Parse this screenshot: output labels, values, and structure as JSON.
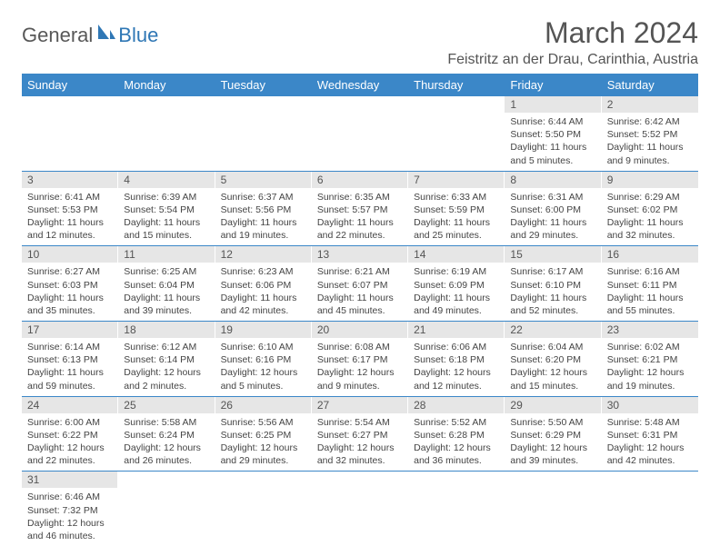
{
  "logo": {
    "general": "General",
    "blue": "Blue"
  },
  "title": "March 2024",
  "location": "Feistritz an der Drau, Carinthia, Austria",
  "columns": [
    "Sunday",
    "Monday",
    "Tuesday",
    "Wednesday",
    "Thursday",
    "Friday",
    "Saturday"
  ],
  "colors": {
    "header_bg": "#3b87c8",
    "header_fg": "#ffffff",
    "daybar_bg": "#e6e6e6",
    "rule": "#3b87c8",
    "logo_blue": "#2f77b5",
    "logo_gray": "#585858"
  },
  "weeks": [
    [
      null,
      null,
      null,
      null,
      null,
      {
        "n": "1",
        "sr": "Sunrise: 6:44 AM",
        "ss": "Sunset: 5:50 PM",
        "dl": "Daylight: 11 hours and 5 minutes."
      },
      {
        "n": "2",
        "sr": "Sunrise: 6:42 AM",
        "ss": "Sunset: 5:52 PM",
        "dl": "Daylight: 11 hours and 9 minutes."
      }
    ],
    [
      {
        "n": "3",
        "sr": "Sunrise: 6:41 AM",
        "ss": "Sunset: 5:53 PM",
        "dl": "Daylight: 11 hours and 12 minutes."
      },
      {
        "n": "4",
        "sr": "Sunrise: 6:39 AM",
        "ss": "Sunset: 5:54 PM",
        "dl": "Daylight: 11 hours and 15 minutes."
      },
      {
        "n": "5",
        "sr": "Sunrise: 6:37 AM",
        "ss": "Sunset: 5:56 PM",
        "dl": "Daylight: 11 hours and 19 minutes."
      },
      {
        "n": "6",
        "sr": "Sunrise: 6:35 AM",
        "ss": "Sunset: 5:57 PM",
        "dl": "Daylight: 11 hours and 22 minutes."
      },
      {
        "n": "7",
        "sr": "Sunrise: 6:33 AM",
        "ss": "Sunset: 5:59 PM",
        "dl": "Daylight: 11 hours and 25 minutes."
      },
      {
        "n": "8",
        "sr": "Sunrise: 6:31 AM",
        "ss": "Sunset: 6:00 PM",
        "dl": "Daylight: 11 hours and 29 minutes."
      },
      {
        "n": "9",
        "sr": "Sunrise: 6:29 AM",
        "ss": "Sunset: 6:02 PM",
        "dl": "Daylight: 11 hours and 32 minutes."
      }
    ],
    [
      {
        "n": "10",
        "sr": "Sunrise: 6:27 AM",
        "ss": "Sunset: 6:03 PM",
        "dl": "Daylight: 11 hours and 35 minutes."
      },
      {
        "n": "11",
        "sr": "Sunrise: 6:25 AM",
        "ss": "Sunset: 6:04 PM",
        "dl": "Daylight: 11 hours and 39 minutes."
      },
      {
        "n": "12",
        "sr": "Sunrise: 6:23 AM",
        "ss": "Sunset: 6:06 PM",
        "dl": "Daylight: 11 hours and 42 minutes."
      },
      {
        "n": "13",
        "sr": "Sunrise: 6:21 AM",
        "ss": "Sunset: 6:07 PM",
        "dl": "Daylight: 11 hours and 45 minutes."
      },
      {
        "n": "14",
        "sr": "Sunrise: 6:19 AM",
        "ss": "Sunset: 6:09 PM",
        "dl": "Daylight: 11 hours and 49 minutes."
      },
      {
        "n": "15",
        "sr": "Sunrise: 6:17 AM",
        "ss": "Sunset: 6:10 PM",
        "dl": "Daylight: 11 hours and 52 minutes."
      },
      {
        "n": "16",
        "sr": "Sunrise: 6:16 AM",
        "ss": "Sunset: 6:11 PM",
        "dl": "Daylight: 11 hours and 55 minutes."
      }
    ],
    [
      {
        "n": "17",
        "sr": "Sunrise: 6:14 AM",
        "ss": "Sunset: 6:13 PM",
        "dl": "Daylight: 11 hours and 59 minutes."
      },
      {
        "n": "18",
        "sr": "Sunrise: 6:12 AM",
        "ss": "Sunset: 6:14 PM",
        "dl": "Daylight: 12 hours and 2 minutes."
      },
      {
        "n": "19",
        "sr": "Sunrise: 6:10 AM",
        "ss": "Sunset: 6:16 PM",
        "dl": "Daylight: 12 hours and 5 minutes."
      },
      {
        "n": "20",
        "sr": "Sunrise: 6:08 AM",
        "ss": "Sunset: 6:17 PM",
        "dl": "Daylight: 12 hours and 9 minutes."
      },
      {
        "n": "21",
        "sr": "Sunrise: 6:06 AM",
        "ss": "Sunset: 6:18 PM",
        "dl": "Daylight: 12 hours and 12 minutes."
      },
      {
        "n": "22",
        "sr": "Sunrise: 6:04 AM",
        "ss": "Sunset: 6:20 PM",
        "dl": "Daylight: 12 hours and 15 minutes."
      },
      {
        "n": "23",
        "sr": "Sunrise: 6:02 AM",
        "ss": "Sunset: 6:21 PM",
        "dl": "Daylight: 12 hours and 19 minutes."
      }
    ],
    [
      {
        "n": "24",
        "sr": "Sunrise: 6:00 AM",
        "ss": "Sunset: 6:22 PM",
        "dl": "Daylight: 12 hours and 22 minutes."
      },
      {
        "n": "25",
        "sr": "Sunrise: 5:58 AM",
        "ss": "Sunset: 6:24 PM",
        "dl": "Daylight: 12 hours and 26 minutes."
      },
      {
        "n": "26",
        "sr": "Sunrise: 5:56 AM",
        "ss": "Sunset: 6:25 PM",
        "dl": "Daylight: 12 hours and 29 minutes."
      },
      {
        "n": "27",
        "sr": "Sunrise: 5:54 AM",
        "ss": "Sunset: 6:27 PM",
        "dl": "Daylight: 12 hours and 32 minutes."
      },
      {
        "n": "28",
        "sr": "Sunrise: 5:52 AM",
        "ss": "Sunset: 6:28 PM",
        "dl": "Daylight: 12 hours and 36 minutes."
      },
      {
        "n": "29",
        "sr": "Sunrise: 5:50 AM",
        "ss": "Sunset: 6:29 PM",
        "dl": "Daylight: 12 hours and 39 minutes."
      },
      {
        "n": "30",
        "sr": "Sunrise: 5:48 AM",
        "ss": "Sunset: 6:31 PM",
        "dl": "Daylight: 12 hours and 42 minutes."
      }
    ],
    [
      {
        "n": "31",
        "sr": "Sunrise: 6:46 AM",
        "ss": "Sunset: 7:32 PM",
        "dl": "Daylight: 12 hours and 46 minutes."
      },
      null,
      null,
      null,
      null,
      null,
      null
    ]
  ]
}
